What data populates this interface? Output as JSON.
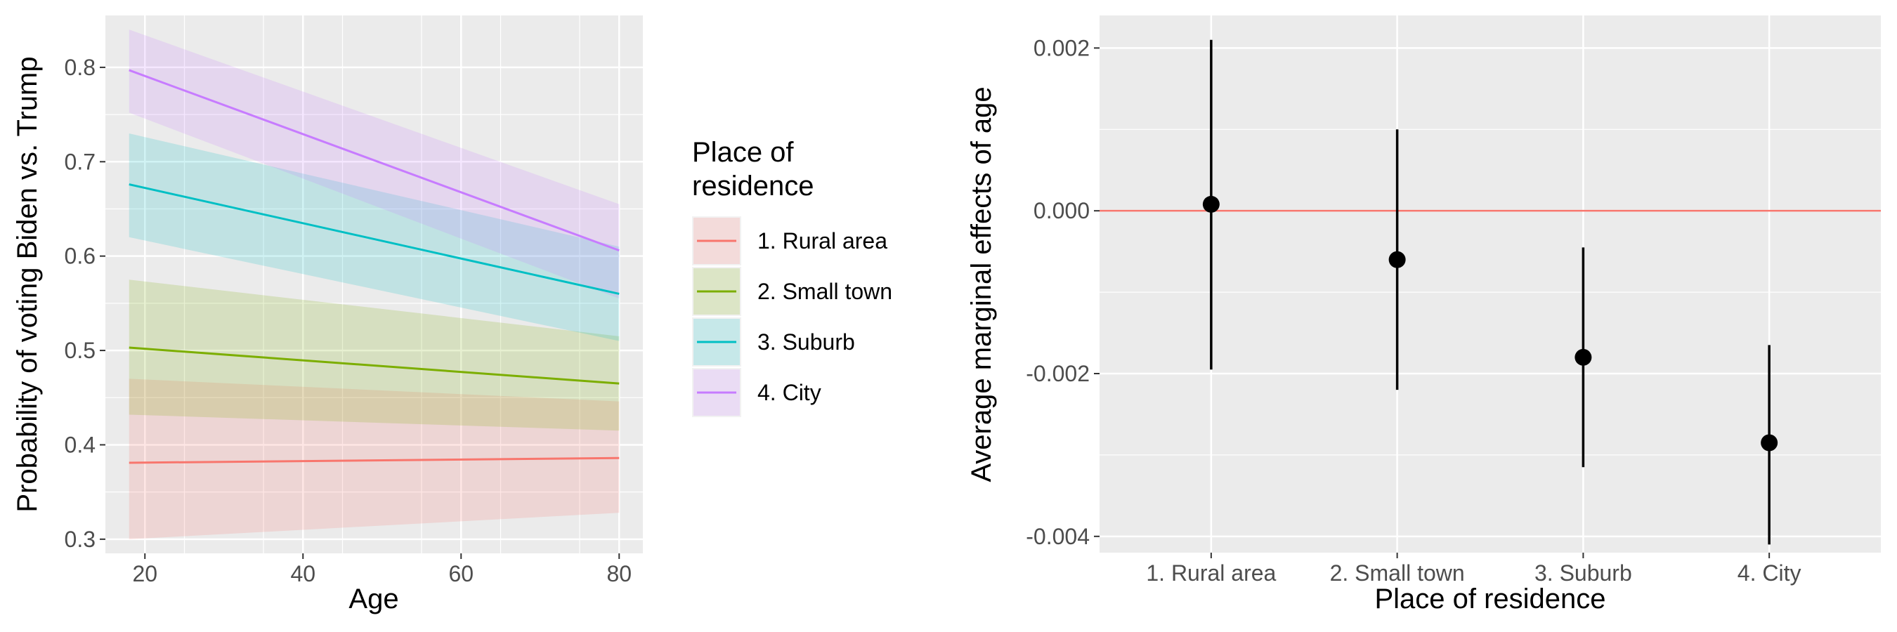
{
  "chart_data": [
    {
      "type": "line",
      "xlabel": "Age",
      "ylabel": "Probability of voting Biden vs. Trump",
      "xlim": [
        18,
        80
      ],
      "ylim": [
        0.3,
        0.85
      ],
      "xticks": [
        "20",
        "40",
        "60",
        "80"
      ],
      "yticks": [
        "0.3",
        "0.4",
        "0.5",
        "0.6",
        "0.7",
        "0.8"
      ],
      "grid": true,
      "legend_title": "Place of\nresidence",
      "legend_position": "right",
      "x": [
        18,
        80
      ],
      "series": [
        {
          "name": "1. Rural area",
          "color": "#F8766D",
          "values": [
            0.381,
            0.386
          ],
          "lower": [
            0.3,
            0.328
          ],
          "upper": [
            0.47,
            0.446
          ]
        },
        {
          "name": "2. Small town",
          "color": "#7CAE00",
          "values": [
            0.503,
            0.465
          ],
          "lower": [
            0.432,
            0.415
          ],
          "upper": [
            0.575,
            0.515
          ]
        },
        {
          "name": "3. Suburb",
          "color": "#00BFC4",
          "values": [
            0.676,
            0.56
          ],
          "lower": [
            0.62,
            0.51
          ],
          "upper": [
            0.73,
            0.61
          ]
        },
        {
          "name": "4. City",
          "color": "#C77CFF",
          "values": [
            0.797,
            0.606
          ],
          "lower": [
            0.752,
            0.555
          ],
          "upper": [
            0.84,
            0.655
          ]
        }
      ]
    },
    {
      "type": "scatter",
      "xlabel": "Place of residence",
      "ylabel": "Average marginal effects of age",
      "categories": [
        "1. Rural area",
        "2. Small town",
        "3. Suburb",
        "4. City"
      ],
      "yticks": [
        "0.002",
        "0.000",
        "-0.002",
        "-0.004"
      ],
      "ytick_values": [
        0.002,
        0.0,
        -0.002,
        -0.004
      ],
      "ylim": [
        -0.0042,
        0.0024
      ],
      "grid": true,
      "reference_line": {
        "y": 0.0,
        "color": "#F8766D"
      },
      "values": [
        8e-05,
        -0.0006,
        -0.0018,
        -0.00285
      ],
      "lower": [
        -0.00195,
        -0.0022,
        -0.00315,
        -0.0041
      ],
      "upper": [
        0.0021,
        0.001,
        -0.00045,
        -0.00165
      ]
    }
  ]
}
